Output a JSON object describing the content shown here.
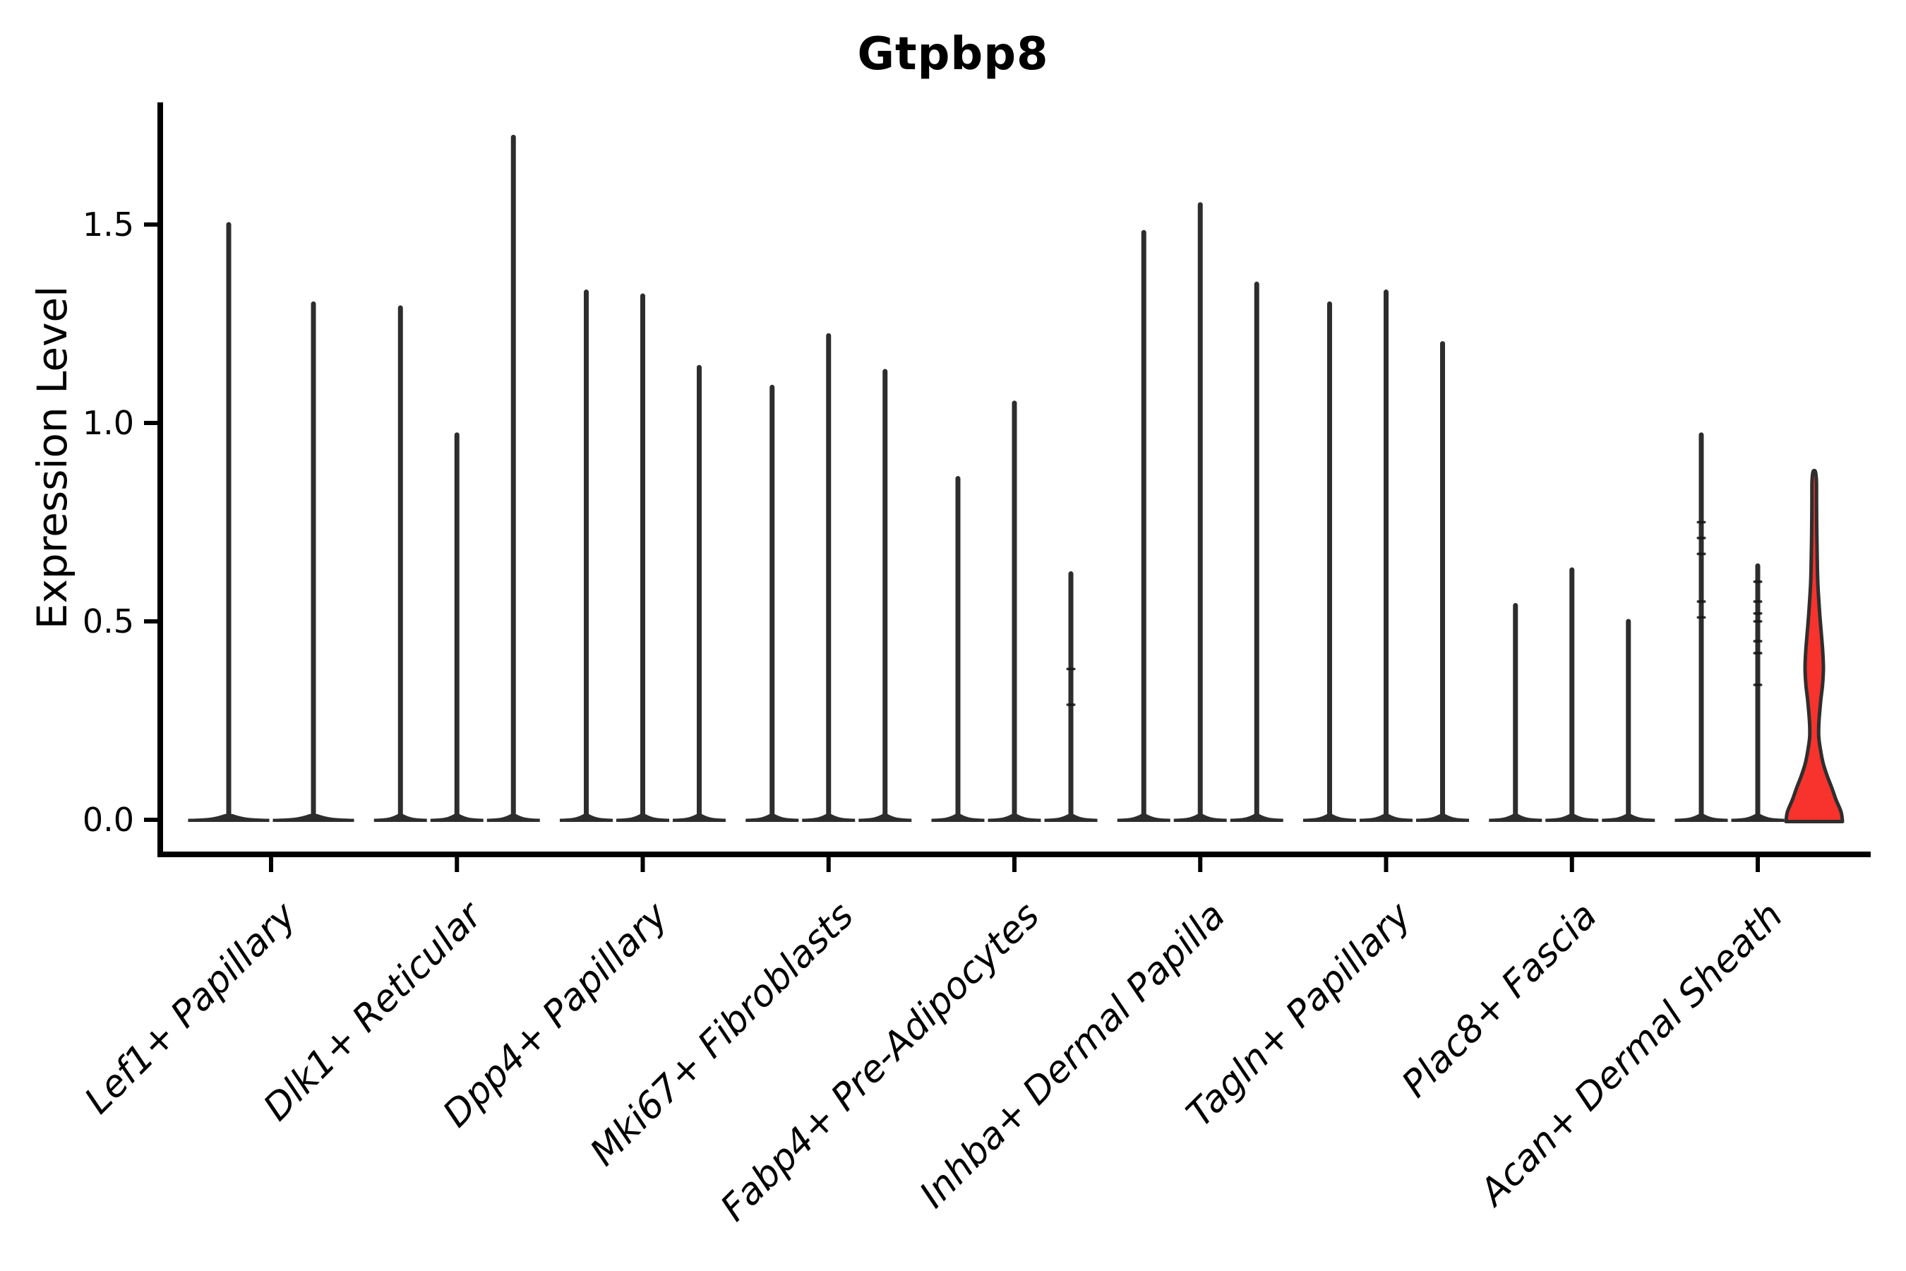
{
  "title": "Gtpbp8",
  "ylabel": "Expression Level",
  "colors": {
    "background": "#ffffff",
    "axis": "#000000",
    "violin": "#2d2d2d",
    "mark": "#161616",
    "highlight_fill": "#f8322c",
    "highlight_stroke": "#2e2e2e"
  },
  "chart_data": {
    "type": "violin",
    "title": "Gtpbp8",
    "xlabel": "",
    "ylabel": "Expression Level",
    "grid": false,
    "legend": "none",
    "ylim": [
      -0.09,
      1.81
    ],
    "ytick_values": [
      0,
      0.5,
      1.0,
      1.5
    ],
    "ytick_labels": [
      "0.0",
      "0.5",
      "1.0",
      "1.5"
    ],
    "categories": [
      "Lef1+ Papillary",
      "Dlk1+ Reticular",
      "Dpp4+ Papillary",
      "Mki67+ Fibroblasts",
      "Fabp4+ Pre-Adipocytes",
      "Inhba+ Dermal Papilla",
      "Tagln+ Papillary",
      "Plac8+ Fascia",
      "Acan+ Dermal Sheath"
    ],
    "groups": [
      {
        "category": "Lef1+ Papillary",
        "violins": [
          {
            "max": 1.5
          },
          {
            "max": 1.3
          }
        ]
      },
      {
        "category": "Dlk1+ Reticular",
        "violins": [
          {
            "max": 1.29
          },
          {
            "max": 0.97
          },
          {
            "max": 1.72
          }
        ]
      },
      {
        "category": "Dpp4+ Papillary",
        "violins": [
          {
            "max": 1.33
          },
          {
            "max": 1.32
          },
          {
            "max": 1.14
          }
        ]
      },
      {
        "category": "Mki67+ Fibroblasts",
        "violins": [
          {
            "max": 1.09
          },
          {
            "max": 1.22
          },
          {
            "max": 1.13
          }
        ]
      },
      {
        "category": "Fabp4+ Pre-Adipocytes",
        "violins": [
          {
            "max": 0.86
          },
          {
            "max": 1.05
          },
          {
            "max": 0.62,
            "marks": [
              0.38,
              0.29
            ]
          }
        ]
      },
      {
        "category": "Inhba+ Dermal Papilla",
        "violins": [
          {
            "max": 1.48
          },
          {
            "max": 1.55
          },
          {
            "max": 1.35
          }
        ]
      },
      {
        "category": "Tagln+ Papillary",
        "violins": [
          {
            "max": 1.3
          },
          {
            "max": 1.33
          },
          {
            "max": 1.2
          }
        ]
      },
      {
        "category": "Plac8+ Fascia",
        "violins": [
          {
            "max": 0.54
          },
          {
            "max": 0.63
          },
          {
            "max": 0.5
          }
        ]
      },
      {
        "category": "Acan+ Dermal Sheath",
        "violins": [
          {
            "max": 0.97,
            "marks": [
              0.75,
              0.71,
              0.67,
              0.55,
              0.51
            ]
          },
          {
            "max": 0.64,
            "marks": [
              0.6,
              0.55,
              0.52,
              0.5,
              0.45,
              0.42,
              0.34
            ]
          },
          {
            "max": 0.88,
            "highlight": true,
            "profile": [
              [
                0.0,
                40
              ],
              [
                0.02,
                38
              ],
              [
                0.05,
                31
              ],
              [
                0.08,
                25
              ],
              [
                0.11,
                18.5
              ],
              [
                0.14,
                13
              ],
              [
                0.17,
                9.5
              ],
              [
                0.21,
                6.4
              ],
              [
                0.25,
                6.8
              ],
              [
                0.3,
                9.2
              ],
              [
                0.34,
                11.8
              ],
              [
                0.38,
                13
              ],
              [
                0.42,
                12.2
              ],
              [
                0.46,
                10.5
              ],
              [
                0.5,
                8.6
              ],
              [
                0.55,
                6.6
              ],
              [
                0.6,
                5.0
              ],
              [
                0.66,
                4.2
              ],
              [
                0.73,
                3.6
              ],
              [
                0.8,
                3.3
              ],
              [
                0.85,
                3.2
              ],
              [
                0.875,
                2.0
              ],
              [
                0.88,
                0
              ]
            ]
          }
        ]
      }
    ]
  }
}
